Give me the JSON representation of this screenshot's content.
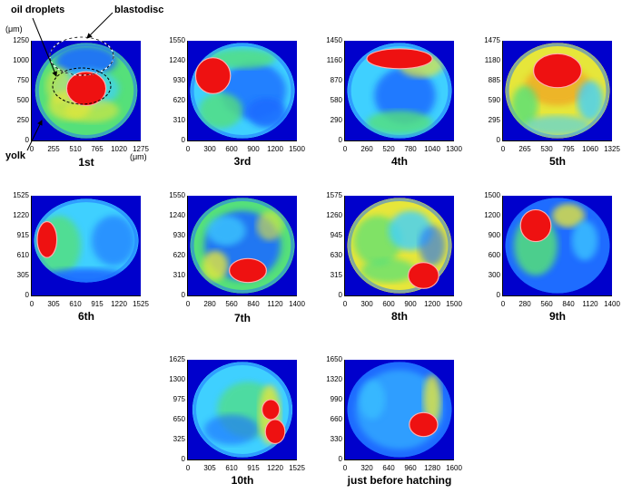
{
  "annotations": {
    "oil_droplets": "oil droplets",
    "blastodisc": "blastodisc",
    "yolk": "yolk",
    "y_unit": "(μm)",
    "x_unit": "(μm)"
  },
  "panels": [
    {
      "id": "p1",
      "label": "1st",
      "yticks": [
        "1250",
        "1000",
        "750",
        "500",
        "250",
        "0"
      ],
      "xticks": [
        "0",
        "255",
        "510",
        "765",
        "1020",
        "1275"
      ],
      "layout": "l1"
    },
    {
      "id": "p3",
      "label": "3rd",
      "yticks": [
        "1550",
        "1240",
        "930",
        "620",
        "310",
        "0"
      ],
      "xticks": [
        "0",
        "300",
        "600",
        "900",
        "1200",
        "1500"
      ],
      "layout": "l3"
    },
    {
      "id": "p4",
      "label": "4th",
      "yticks": [
        "1450",
        "1160",
        "870",
        "580",
        "290",
        "0"
      ],
      "xticks": [
        "0",
        "260",
        "520",
        "780",
        "1040",
        "1300"
      ],
      "layout": "l4"
    },
    {
      "id": "p5",
      "label": "5th",
      "yticks": [
        "1475",
        "1180",
        "885",
        "590",
        "295",
        "0"
      ],
      "xticks": [
        "0",
        "265",
        "530",
        "795",
        "1060",
        "1325"
      ],
      "layout": "l5"
    },
    {
      "id": "p6",
      "label": "6th",
      "yticks": [
        "1525",
        "1220",
        "915",
        "610",
        "305",
        "0"
      ],
      "xticks": [
        "0",
        "305",
        "610",
        "915",
        "1220",
        "1525"
      ],
      "layout": "l6"
    },
    {
      "id": "p7",
      "label": "7th",
      "yticks": [
        "1550",
        "1240",
        "930",
        "620",
        "310",
        "0"
      ],
      "xticks": [
        "0",
        "280",
        "560",
        "840",
        "1120",
        "1400"
      ],
      "layout": "l7"
    },
    {
      "id": "p8",
      "label": "8th",
      "yticks": [
        "1575",
        "1260",
        "945",
        "630",
        "315",
        "0"
      ],
      "xticks": [
        "0",
        "300",
        "600",
        "900",
        "1200",
        "1500"
      ],
      "layout": "l8"
    },
    {
      "id": "p9",
      "label": "9th",
      "yticks": [
        "1500",
        "1200",
        "900",
        "600",
        "300",
        "0"
      ],
      "xticks": [
        "0",
        "280",
        "560",
        "840",
        "1120",
        "1400"
      ],
      "layout": "l9"
    },
    {
      "id": "p10",
      "label": "10th",
      "yticks": [
        "1625",
        "1300",
        "975",
        "650",
        "325",
        "0"
      ],
      "xticks": [
        "0",
        "305",
        "610",
        "915",
        "1220",
        "1525"
      ],
      "layout": "l10"
    },
    {
      "id": "p11",
      "label": "just before hatching",
      "yticks": [
        "1650",
        "1320",
        "990",
        "660",
        "330",
        "0"
      ],
      "xticks": [
        "0",
        "320",
        "640",
        "960",
        "1280",
        "1600"
      ],
      "layout": "l11"
    }
  ],
  "colors": {
    "background": "#0000cc",
    "cold": "#1e6cff",
    "cyan": "#3fd0ff",
    "green": "#55e07a",
    "yellow": "#e6e63a",
    "orange": "#f0a020",
    "hot": "#ee1111"
  }
}
